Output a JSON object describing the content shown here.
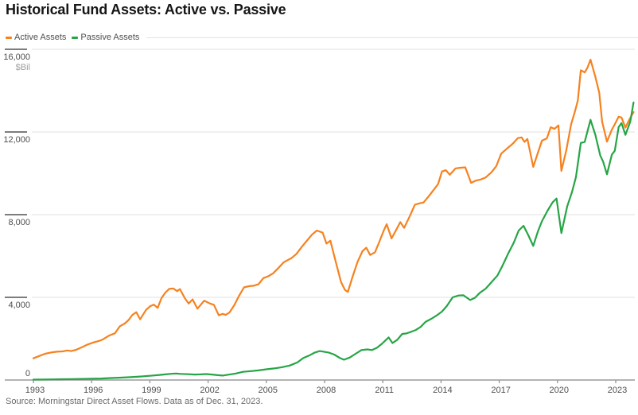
{
  "header": {
    "title": "Historical Fund Assets: Active vs. Passive"
  },
  "legend": {
    "items": [
      {
        "label": "Active Assets",
        "color": "#f6821f"
      },
      {
        "label": "Passive Assets",
        "color": "#26a546"
      }
    ]
  },
  "source": {
    "text": "Source: Morningstar Direct Asset Flows. Data as of Dec. 31, 2023."
  },
  "colors": {
    "active": "#f6821f",
    "passive": "#26a546",
    "grid": "#e2e2e2",
    "axis": "#9a9a9a",
    "tick": "#7d7d7d",
    "label": "#4f4f4f",
    "unit": "#9e9e9e"
  },
  "chart_data": {
    "type": "line",
    "title": "Historical Fund Assets: Active vs. Passive",
    "ylabel": "$Bil",
    "ylim": [
      0,
      16000
    ],
    "yticks": [
      0,
      4000,
      8000,
      12000,
      16000
    ],
    "ytick_labels": [
      "0",
      "4,000",
      "8,000",
      "12,000",
      "16,000"
    ],
    "xticks": [
      1993,
      1996,
      1999,
      2002,
      2005,
      2008,
      2011,
      2014,
      2017,
      2020,
      2023
    ],
    "xlim": [
      1993,
      2024
    ],
    "grid": true,
    "legend_position": "top-left",
    "series": [
      {
        "name": "Active Assets",
        "color": "#f6821f",
        "points": [
          [
            1993.0,
            1050
          ],
          [
            1993.3,
            1160
          ],
          [
            1993.6,
            1270
          ],
          [
            1993.9,
            1330
          ],
          [
            1994.2,
            1370
          ],
          [
            1994.5,
            1385
          ],
          [
            1994.75,
            1430
          ],
          [
            1994.95,
            1400
          ],
          [
            1995.2,
            1460
          ],
          [
            1995.5,
            1590
          ],
          [
            1995.8,
            1720
          ],
          [
            1996.1,
            1820
          ],
          [
            1996.35,
            1880
          ],
          [
            1996.55,
            1950
          ],
          [
            1996.9,
            2150
          ],
          [
            1997.2,
            2260
          ],
          [
            1997.45,
            2600
          ],
          [
            1997.7,
            2730
          ],
          [
            1997.9,
            2900
          ],
          [
            1998.1,
            3150
          ],
          [
            1998.3,
            3280
          ],
          [
            1998.5,
            2940
          ],
          [
            1998.8,
            3390
          ],
          [
            1999.0,
            3560
          ],
          [
            1999.2,
            3650
          ],
          [
            1999.4,
            3490
          ],
          [
            1999.6,
            3960
          ],
          [
            1999.8,
            4230
          ],
          [
            2000.0,
            4410
          ],
          [
            2000.2,
            4430
          ],
          [
            2000.4,
            4300
          ],
          [
            2000.55,
            4400
          ],
          [
            2000.8,
            3960
          ],
          [
            2001.0,
            3700
          ],
          [
            2001.2,
            3900
          ],
          [
            2001.45,
            3450
          ],
          [
            2001.8,
            3840
          ],
          [
            2002.1,
            3700
          ],
          [
            2002.3,
            3640
          ],
          [
            2002.55,
            3130
          ],
          [
            2002.75,
            3200
          ],
          [
            2002.9,
            3150
          ],
          [
            2003.1,
            3260
          ],
          [
            2003.35,
            3620
          ],
          [
            2003.6,
            4080
          ],
          [
            2003.85,
            4480
          ],
          [
            2004.1,
            4540
          ],
          [
            2004.35,
            4560
          ],
          [
            2004.6,
            4640
          ],
          [
            2004.85,
            4930
          ],
          [
            2005.1,
            5020
          ],
          [
            2005.35,
            5160
          ],
          [
            2005.65,
            5450
          ],
          [
            2005.9,
            5700
          ],
          [
            2006.1,
            5800
          ],
          [
            2006.3,
            5900
          ],
          [
            2006.55,
            6100
          ],
          [
            2006.85,
            6470
          ],
          [
            2007.1,
            6750
          ],
          [
            2007.35,
            7030
          ],
          [
            2007.6,
            7230
          ],
          [
            2007.9,
            7130
          ],
          [
            2008.1,
            6600
          ],
          [
            2008.3,
            6740
          ],
          [
            2008.6,
            5640
          ],
          [
            2008.85,
            4740
          ],
          [
            2009.05,
            4360
          ],
          [
            2009.2,
            4260
          ],
          [
            2009.45,
            5020
          ],
          [
            2009.7,
            5720
          ],
          [
            2009.95,
            6230
          ],
          [
            2010.15,
            6400
          ],
          [
            2010.35,
            6050
          ],
          [
            2010.6,
            6180
          ],
          [
            2010.85,
            6750
          ],
          [
            2011.05,
            7230
          ],
          [
            2011.2,
            7540
          ],
          [
            2011.45,
            6850
          ],
          [
            2011.7,
            7280
          ],
          [
            2011.9,
            7640
          ],
          [
            2012.1,
            7360
          ],
          [
            2012.4,
            7950
          ],
          [
            2012.65,
            8480
          ],
          [
            2012.9,
            8550
          ],
          [
            2013.1,
            8590
          ],
          [
            2013.35,
            8870
          ],
          [
            2013.6,
            9170
          ],
          [
            2013.85,
            9480
          ],
          [
            2014.05,
            10090
          ],
          [
            2014.25,
            10150
          ],
          [
            2014.45,
            9930
          ],
          [
            2014.75,
            10240
          ],
          [
            2015.0,
            10270
          ],
          [
            2015.25,
            10290
          ],
          [
            2015.55,
            9540
          ],
          [
            2015.8,
            9650
          ],
          [
            2016.05,
            9700
          ],
          [
            2016.3,
            9800
          ],
          [
            2016.6,
            10050
          ],
          [
            2016.85,
            10350
          ],
          [
            2017.1,
            10950
          ],
          [
            2017.4,
            11200
          ],
          [
            2017.7,
            11440
          ],
          [
            2017.95,
            11700
          ],
          [
            2018.15,
            11740
          ],
          [
            2018.3,
            11520
          ],
          [
            2018.45,
            11660
          ],
          [
            2018.75,
            10310
          ],
          [
            2019.0,
            11020
          ],
          [
            2019.2,
            11580
          ],
          [
            2019.45,
            11690
          ],
          [
            2019.65,
            12230
          ],
          [
            2019.85,
            12150
          ],
          [
            2020.05,
            12320
          ],
          [
            2020.2,
            10120
          ],
          [
            2020.45,
            11100
          ],
          [
            2020.7,
            12370
          ],
          [
            2020.9,
            13000
          ],
          [
            2021.05,
            13530
          ],
          [
            2021.2,
            14990
          ],
          [
            2021.4,
            14880
          ],
          [
            2021.55,
            15120
          ],
          [
            2021.7,
            15500
          ],
          [
            2021.95,
            14670
          ],
          [
            2022.15,
            13900
          ],
          [
            2022.3,
            12500
          ],
          [
            2022.55,
            11530
          ],
          [
            2022.8,
            12110
          ],
          [
            2022.95,
            12370
          ],
          [
            2023.15,
            12740
          ],
          [
            2023.3,
            12700
          ],
          [
            2023.5,
            12210
          ],
          [
            2023.7,
            12600
          ],
          [
            2023.92,
            12960
          ]
        ]
      },
      {
        "name": "Passive Assets",
        "color": "#26a546",
        "points": [
          [
            1993.0,
            20
          ],
          [
            1993.5,
            25
          ],
          [
            1994.0,
            32
          ],
          [
            1994.5,
            38
          ],
          [
            1995.0,
            45
          ],
          [
            1995.5,
            52
          ],
          [
            1996.0,
            62
          ],
          [
            1996.5,
            75
          ],
          [
            1997.0,
            95
          ],
          [
            1997.5,
            115
          ],
          [
            1998.0,
            140
          ],
          [
            1998.5,
            170
          ],
          [
            1999.0,
            205
          ],
          [
            1999.5,
            245
          ],
          [
            1999.8,
            275
          ],
          [
            2000.1,
            300
          ],
          [
            2000.35,
            315
          ],
          [
            2000.6,
            295
          ],
          [
            2001.0,
            280
          ],
          [
            2001.3,
            265
          ],
          [
            2001.6,
            275
          ],
          [
            2001.9,
            290
          ],
          [
            2002.2,
            265
          ],
          [
            2002.5,
            235
          ],
          [
            2002.75,
            215
          ],
          [
            2003.0,
            255
          ],
          [
            2003.4,
            310
          ],
          [
            2003.8,
            395
          ],
          [
            2004.2,
            430
          ],
          [
            2004.6,
            465
          ],
          [
            2005.0,
            520
          ],
          [
            2005.4,
            560
          ],
          [
            2005.8,
            620
          ],
          [
            2006.2,
            700
          ],
          [
            2006.6,
            850
          ],
          [
            2006.9,
            1060
          ],
          [
            2007.2,
            1180
          ],
          [
            2007.5,
            1330
          ],
          [
            2007.75,
            1400
          ],
          [
            2008.0,
            1360
          ],
          [
            2008.2,
            1330
          ],
          [
            2008.5,
            1230
          ],
          [
            2008.8,
            1060
          ],
          [
            2009.0,
            980
          ],
          [
            2009.3,
            1090
          ],
          [
            2009.6,
            1270
          ],
          [
            2009.9,
            1450
          ],
          [
            2010.2,
            1480
          ],
          [
            2010.45,
            1450
          ],
          [
            2010.7,
            1560
          ],
          [
            2010.95,
            1750
          ],
          [
            2011.3,
            2060
          ],
          [
            2011.5,
            1790
          ],
          [
            2011.75,
            1950
          ],
          [
            2012.0,
            2230
          ],
          [
            2012.2,
            2250
          ],
          [
            2012.45,
            2330
          ],
          [
            2012.7,
            2420
          ],
          [
            2012.95,
            2570
          ],
          [
            2013.2,
            2810
          ],
          [
            2013.5,
            2960
          ],
          [
            2013.8,
            3140
          ],
          [
            2014.05,
            3310
          ],
          [
            2014.3,
            3580
          ],
          [
            2014.6,
            4000
          ],
          [
            2014.9,
            4090
          ],
          [
            2015.15,
            4100
          ],
          [
            2015.5,
            3870
          ],
          [
            2015.75,
            3980
          ],
          [
            2016.0,
            4220
          ],
          [
            2016.3,
            4420
          ],
          [
            2016.65,
            4790
          ],
          [
            2016.9,
            5050
          ],
          [
            2017.15,
            5500
          ],
          [
            2017.45,
            6100
          ],
          [
            2017.75,
            6650
          ],
          [
            2018.0,
            7230
          ],
          [
            2018.25,
            7460
          ],
          [
            2018.5,
            7000
          ],
          [
            2018.75,
            6490
          ],
          [
            2019.0,
            7210
          ],
          [
            2019.2,
            7690
          ],
          [
            2019.5,
            8210
          ],
          [
            2019.75,
            8600
          ],
          [
            2019.95,
            8780
          ],
          [
            2020.2,
            7110
          ],
          [
            2020.5,
            8400
          ],
          [
            2020.75,
            9100
          ],
          [
            2020.95,
            9820
          ],
          [
            2021.2,
            11470
          ],
          [
            2021.4,
            11520
          ],
          [
            2021.7,
            12590
          ],
          [
            2021.95,
            11860
          ],
          [
            2022.2,
            10870
          ],
          [
            2022.35,
            10570
          ],
          [
            2022.55,
            9950
          ],
          [
            2022.8,
            10900
          ],
          [
            2022.95,
            11090
          ],
          [
            2023.15,
            12240
          ],
          [
            2023.3,
            12430
          ],
          [
            2023.5,
            11860
          ],
          [
            2023.75,
            12500
          ],
          [
            2023.92,
            13430
          ]
        ]
      }
    ]
  }
}
